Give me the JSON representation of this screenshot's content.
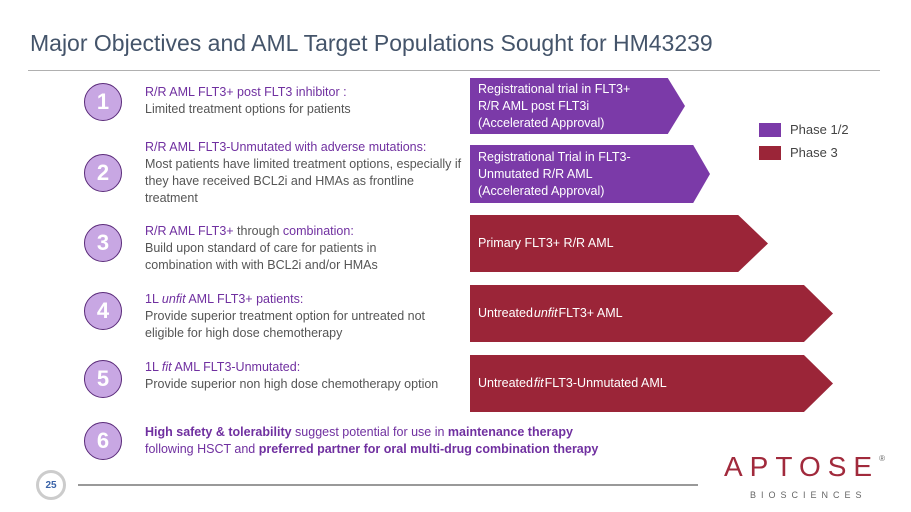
{
  "title": "Major Objectives and AML Target Populations Sought for HM43239",
  "items": [
    {
      "num": "1",
      "head": "R/R AML FLT3+ post FLT3 inhibitor :",
      "body": "Limited treatment options for patients",
      "target": "Registrational trial in FLT3+ R/R AML post FLT3i (Accelerated Approval)",
      "phase": "Phase 1/2"
    },
    {
      "num": "2",
      "head": "R/R AML FLT3-Unmutated with adverse mutations:",
      "body": "Most patients have limited treatment options, especially if they have received BCL2i and HMAs as frontline treatment",
      "target": "Registrational Trial in FLT3-Unmutated R/R AML (Accelerated Approval)",
      "phase": "Phase 1/2"
    },
    {
      "num": "3",
      "head": "R/R AML FLT3+",
      "head2": " through ",
      "head3": "combination:",
      "body": "Build upon standard of care for patients in combination with with BCL2i and/or HMAs",
      "target": "Primary FLT3+ R/R AML",
      "phase": "Phase 3"
    },
    {
      "num": "4",
      "head": "1L ",
      "head_em": "unfit",
      "head2": " AML FLT3+ patients:",
      "body": "Provide superior treatment option for untreated not eligible for high dose chemotherapy",
      "target": "Untreated ",
      "target_em": "unfit",
      "target2": " FLT3+ AML",
      "phase": "Phase 3"
    },
    {
      "num": "5",
      "head": "1L ",
      "head_em": "fit",
      "head2": " AML FLT3-Unmutated:",
      "body": "Provide superior non high dose chemotherapy option",
      "target": "Untreated ",
      "target_em": "fit",
      "target2": " FLT3-Unmutated AML",
      "phase": "Phase 3"
    },
    {
      "num": "6",
      "p1": "High safety & tolerability",
      "p2": " suggest potential for use in ",
      "p3": "maintenance therapy",
      "p4": "following HSCT and ",
      "p5": "preferred partner for oral multi-drug combination therapy"
    }
  ],
  "legend": [
    {
      "label": "Phase 1/2",
      "color": "#7b3aa8"
    },
    {
      "label": "Phase 3",
      "color": "#9b2538"
    }
  ],
  "page_number": "25",
  "logo": {
    "name": "APTOSE",
    "sub": "BIOSCIENCES",
    "reg": "®"
  }
}
